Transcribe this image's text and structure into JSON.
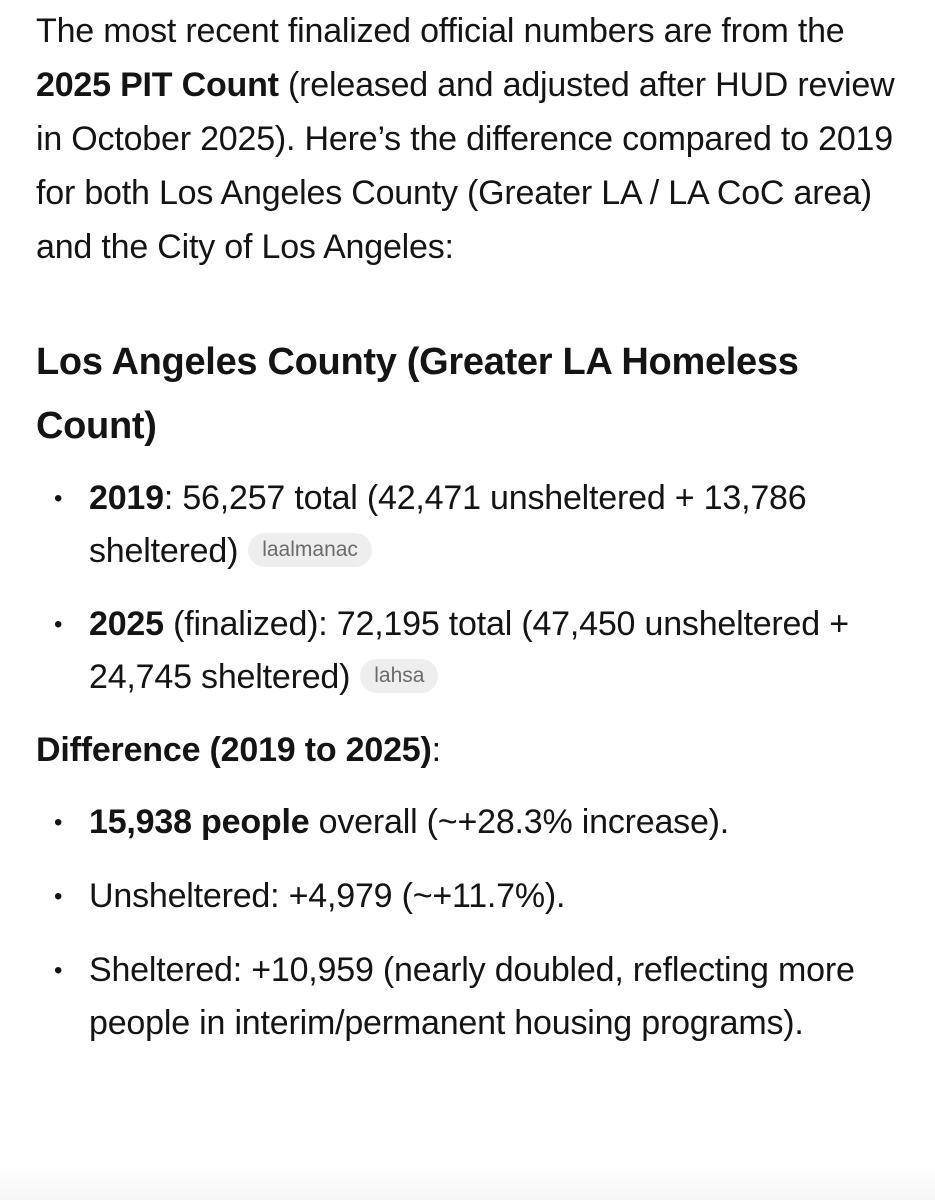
{
  "intro": {
    "part1": "The most recent finalized official numbers are from the ",
    "bold": "2025 PIT Count",
    "part2": " (released and adjusted after HUD review in October 2025). Here’s the difference compared to 2019 for both Los Angeles County (Greater LA / LA CoC area) and the City of Los Angeles:"
  },
  "county_section": {
    "heading": "Los Angeles County (Greater LA Homeless Count)",
    "items": [
      {
        "bold": "2019",
        "text": ": 56,257 total (42,471 unsheltered + 13,786 sheltered)",
        "source": "laalmanac"
      },
      {
        "bold": "2025",
        "text": " (finalized): 72,195 total (47,450 unsheltered + 24,745 sheltered)",
        "source": "lahsa"
      }
    ]
  },
  "difference": {
    "heading_bold": "Difference (2019 to 2025)",
    "heading_suffix": ":",
    "items": [
      {
        "bold": "15,938 people",
        "text": " overall (~+28.3% increase)."
      },
      {
        "bold": "",
        "text": "Unsheltered: +4,979 (~+11.7%)."
      },
      {
        "bold": "",
        "text": "Sheltered: +10,959 (nearly doubled, reflecting more people in interim/permanent housing programs)."
      }
    ]
  },
  "bullet_char": "•"
}
